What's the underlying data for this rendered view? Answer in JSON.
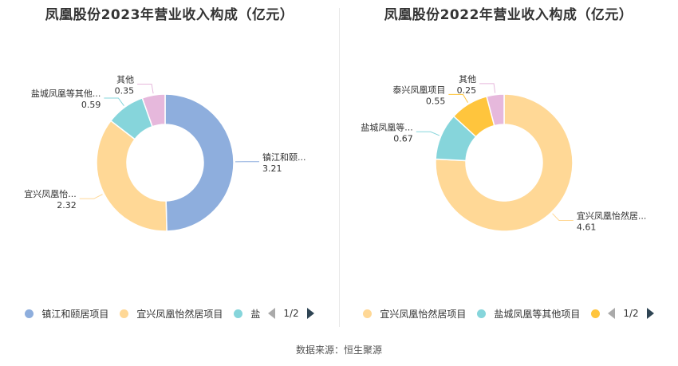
{
  "source": "数据来源：恒生聚源",
  "chart_data": [
    {
      "type": "pie",
      "title": "凤凰股份2023年营业收入构成（亿元）",
      "slices": [
        {
          "name": "镇江和颐居项目",
          "label": "镇江和颐...",
          "value": 3.21,
          "value_label": "3.21",
          "color": "#8eaedd"
        },
        {
          "name": "宜兴凤凰怡然居项目",
          "label": "宜兴凤凰怡...",
          "value": 2.32,
          "value_label": "2.32",
          "color": "#ffd896"
        },
        {
          "name": "盐城凤凰等其他项目",
          "label": "盐城凤凰等其他...",
          "value": 0.59,
          "value_label": "0.59",
          "color": "#86d5db"
        },
        {
          "name": "其他",
          "label": "其他",
          "value": 0.35,
          "value_label": "0.35",
          "color": "#e6b8dc"
        }
      ],
      "legend": {
        "items": [
          {
            "label": "镇江和颐居项目",
            "color": "#8eaedd"
          },
          {
            "label": "宜兴凤凰怡然居项目",
            "color": "#ffd896"
          },
          {
            "label": "盐",
            "color": "#86d5db"
          }
        ],
        "page": "1/2"
      }
    },
    {
      "type": "pie",
      "title": "凤凰股份2022年营业收入构成（亿元）",
      "slices": [
        {
          "name": "宜兴凤凰怡然居项目",
          "label": "宜兴凤凰怡然居...",
          "value": 4.61,
          "value_label": "4.61",
          "color": "#ffd896"
        },
        {
          "name": "盐城凤凰等其他项目",
          "label": "盐城凤凰等...",
          "value": 0.67,
          "value_label": "0.67",
          "color": "#86d5db"
        },
        {
          "name": "泰兴凤凰项目",
          "label": "泰兴凤凰项目",
          "value": 0.55,
          "value_label": "0.55",
          "color": "#ffc53d"
        },
        {
          "name": "其他",
          "label": "其他",
          "value": 0.25,
          "value_label": "0.25",
          "color": "#e6b8dc"
        }
      ],
      "legend": {
        "items": [
          {
            "label": "宜兴凤凰怡然居项目",
            "color": "#ffd896"
          },
          {
            "label": "盐城凤凰等其他项目",
            "color": "#86d5db"
          },
          {
            "label": "",
            "color": "#ffc53d"
          }
        ],
        "page": "1/2"
      }
    }
  ]
}
